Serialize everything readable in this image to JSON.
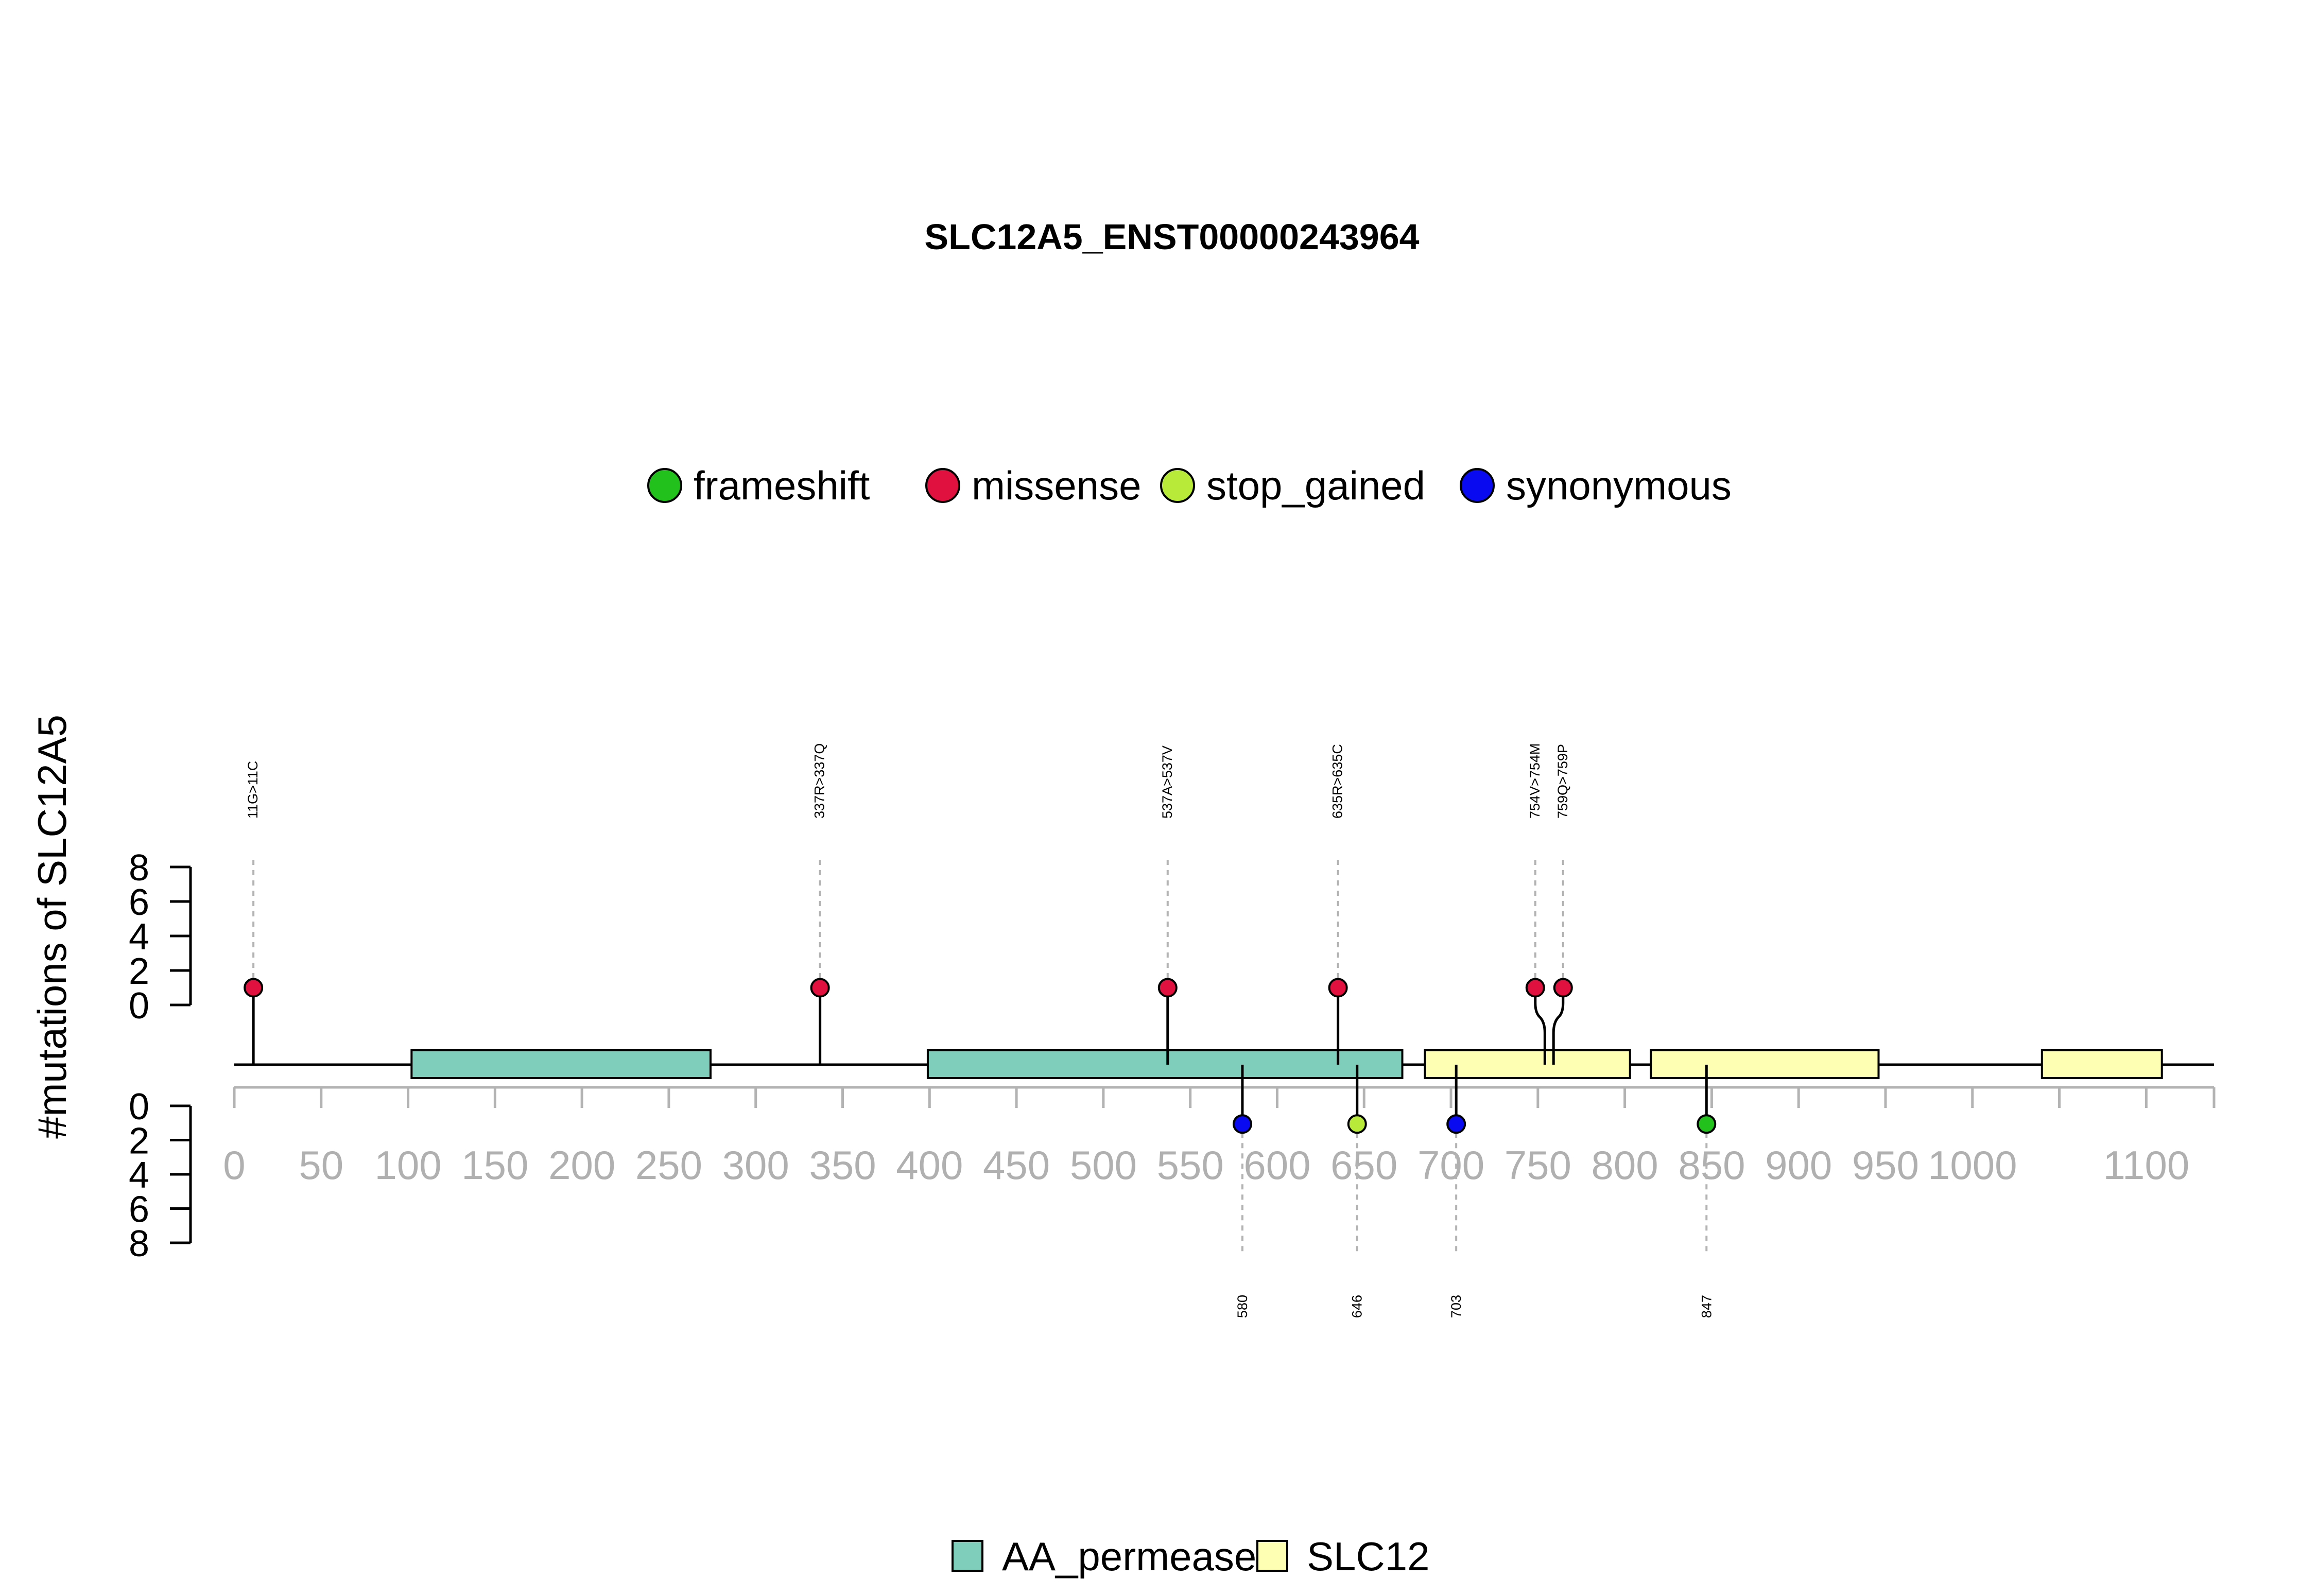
{
  "chart_data": {
    "type": "lollipop",
    "title": "SLC12A5_ENST00000243964",
    "ylabel": "#mutations of SLC12A5",
    "xlim": [
      0,
      1139
    ],
    "x_ticks": [
      0,
      50,
      100,
      150,
      200,
      250,
      300,
      350,
      400,
      450,
      500,
      550,
      600,
      650,
      700,
      750,
      800,
      850,
      900,
      950,
      1000,
      1100
    ],
    "x_minor_ticks": [
      0,
      50,
      100,
      150,
      200,
      250,
      300,
      350,
      400,
      450,
      500,
      550,
      600,
      650,
      700,
      750,
      800,
      850,
      900,
      950,
      1000,
      1050,
      1100,
      1139
    ],
    "y_top": {
      "ticks": [
        0,
        2,
        4,
        6,
        8
      ],
      "ylim": [
        0,
        8
      ]
    },
    "y_bottom": {
      "ticks": [
        0,
        2,
        4,
        6,
        8
      ],
      "ylim": [
        0,
        8
      ]
    },
    "mutation_legend": [
      {
        "name": "frameshift",
        "color": "#22c11b"
      },
      {
        "name": "missense",
        "color": "#e0103f"
      },
      {
        "name": "stop_gained",
        "color": "#b8ea3a"
      },
      {
        "name": "synonymous",
        "color": "#0a0af0"
      }
    ],
    "domain_legend": [
      {
        "name": "AA_permease",
        "color": "#7fcdbb"
      },
      {
        "name": "SLC12",
        "color": "#ffffb3"
      }
    ],
    "domains": [
      {
        "name": "AA_permease",
        "start": 102,
        "end": 274
      },
      {
        "name": "AA_permease",
        "start": 399,
        "end": 672
      },
      {
        "name": "SLC12",
        "start": 685,
        "end": 803
      },
      {
        "name": "SLC12",
        "start": 815,
        "end": 946
      },
      {
        "name": "SLC12",
        "start": 1040,
        "end": 1109
      }
    ],
    "mutations_top": [
      {
        "pos": 11,
        "label": "11G>11C",
        "type": "missense",
        "count": 1
      },
      {
        "pos": 337,
        "label": "337R>337Q",
        "type": "missense",
        "count": 1
      },
      {
        "pos": 537,
        "label": "537A>537V",
        "type": "missense",
        "count": 1
      },
      {
        "pos": 635,
        "label": "635R>635C",
        "type": "missense",
        "count": 1
      },
      {
        "pos": 754,
        "label": "754V>754M",
        "type": "missense",
        "count": 1
      },
      {
        "pos": 759,
        "label": "759Q>759P",
        "type": "missense",
        "count": 1
      }
    ],
    "mutations_bottom": [
      {
        "pos": 580,
        "label": "580",
        "type": "synonymous",
        "count": 1
      },
      {
        "pos": 646,
        "label": "646",
        "type": "stop_gained",
        "count": 1
      },
      {
        "pos": 703,
        "label": "703",
        "type": "synonymous",
        "count": 1
      },
      {
        "pos": 847,
        "label": "847",
        "type": "frameshift",
        "count": 1
      }
    ]
  }
}
